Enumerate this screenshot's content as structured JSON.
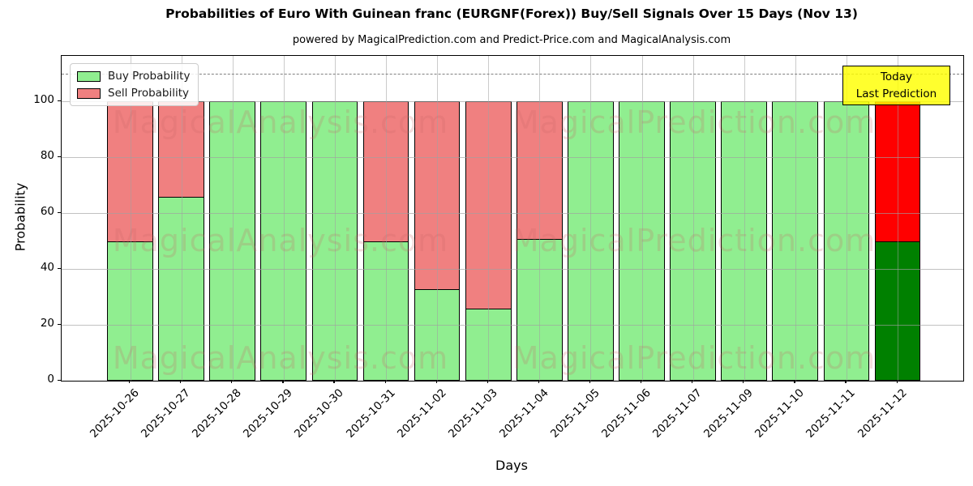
{
  "title": "Probabilities of Euro With Guinean franc (EURGNF(Forex)) Buy/Sell Signals Over 15 Days (Nov 13)",
  "subtitle": "powered by MagicalPrediction.com and Predict-Price.com and MagicalAnalysis.com",
  "legend": {
    "items": [
      {
        "label": "Buy Probability",
        "color": "#90ee90"
      },
      {
        "label": "Sell Probability",
        "color": "#f08080"
      }
    ]
  },
  "annotation": {
    "line1": "Today",
    "line2": "Last Prediction",
    "bg_color": "#ffff00"
  },
  "watermarks": {
    "left_text": "MagicalAnalysis.com",
    "right_text": "MagicalPrediction.com"
  },
  "axes": {
    "x_label": "Days",
    "y_label": "Probability",
    "y_ticks": [
      0,
      20,
      40,
      60,
      80,
      100
    ]
  },
  "colors": {
    "buy": "#90ee90",
    "sell": "#f08080",
    "buy_today": "#008000",
    "sell_today": "#ff0000",
    "bar_edge": "#000000",
    "dashed_line": "#7f7f7f",
    "grid": "#b0b0b0",
    "annotation_bg": "#ffff00"
  },
  "chart_data": {
    "type": "bar",
    "stacked": true,
    "title": "Probabilities of Euro With Guinean franc (EURGNF(Forex)) Buy/Sell Signals Over 15 Days (Nov 13)",
    "xlabel": "Days",
    "ylabel": "Probability",
    "ylim": [
      0,
      116
    ],
    "grid": true,
    "legend_position": "upper left",
    "dashed_line_y": 110,
    "categories": [
      "2025-10-26",
      "2025-10-27",
      "2025-10-28",
      "2025-10-29",
      "2025-10-30",
      "2025-10-31",
      "2025-11-02",
      "2025-11-03",
      "2025-11-04",
      "2025-11-05",
      "2025-11-06",
      "2025-11-07",
      "2025-11-09",
      "2025-11-10",
      "2025-11-11",
      "2025-11-12"
    ],
    "series": [
      {
        "name": "Buy Probability",
        "values": [
          50,
          66,
          100,
          100,
          100,
          50,
          33,
          26,
          51,
          100,
          100,
          100,
          100,
          100,
          100,
          50
        ],
        "color": "#90ee90",
        "today_color": "#008000"
      },
      {
        "name": "Sell Probability",
        "values": [
          50,
          34,
          0,
          0,
          0,
          50,
          67,
          74,
          49,
          0,
          0,
          0,
          0,
          0,
          0,
          50
        ],
        "color": "#f08080",
        "today_color": "#ff0000"
      }
    ]
  }
}
